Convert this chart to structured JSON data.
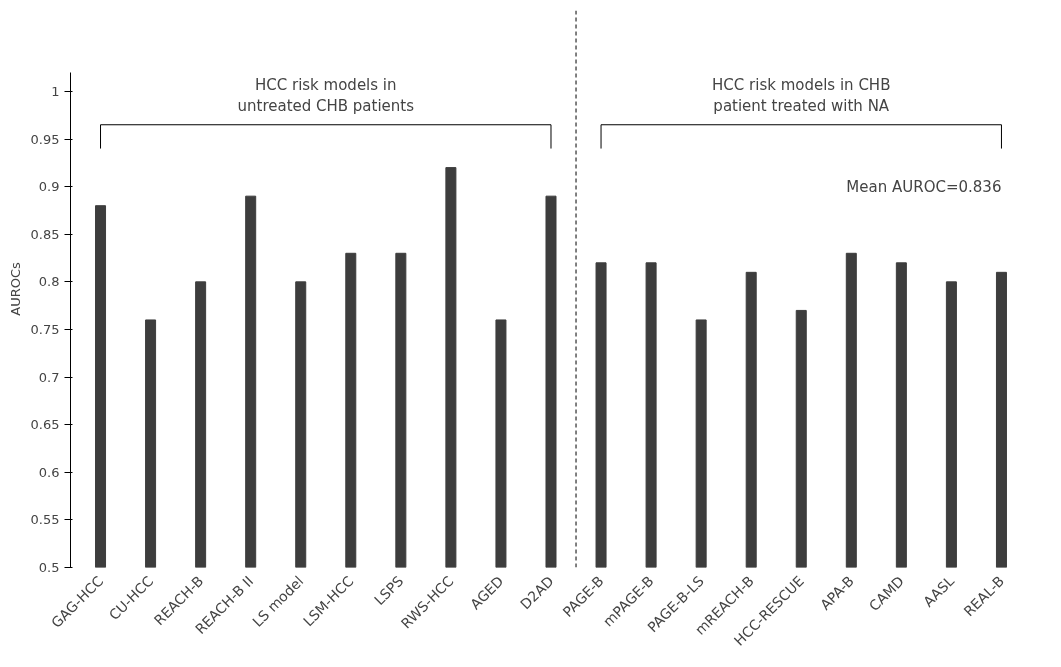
{
  "chart_data": {
    "type": "bar",
    "ylabel": "AUROCs",
    "categories": [
      "GAG-HCC",
      "CU-HCC",
      "REACH-B",
      "REACH-B II",
      "LS model",
      "LSM-HCC",
      "LSPS",
      "RWS-HCC",
      "AGED",
      "D2AD",
      "PAGE-B",
      "mPAGE-B",
      "PAGE-B-LS",
      "mREACH-B",
      "HCC-RESCUE",
      "APA-B",
      "CAMD",
      "AASL",
      "REAL-B"
    ],
    "values": [
      0.88,
      0.76,
      0.8,
      0.89,
      0.8,
      0.83,
      0.83,
      0.92,
      0.76,
      0.89,
      0.82,
      0.82,
      0.76,
      0.81,
      0.77,
      0.83,
      0.82,
      0.8,
      0.81
    ],
    "color": "#3d3d3d",
    "ylim": [
      0.5,
      1.02
    ],
    "yticks": [
      {
        "value": 0.5,
        "label": "0.5"
      },
      {
        "value": 0.55,
        "label": "0.55"
      },
      {
        "value": 0.6,
        "label": "0.6"
      },
      {
        "value": 0.65,
        "label": "0.65"
      },
      {
        "value": 0.7,
        "label": "0.7"
      },
      {
        "value": 0.75,
        "label": "0.75"
      },
      {
        "value": 0.8,
        "label": "0.8"
      },
      {
        "value": 0.85,
        "label": "0.85"
      },
      {
        "value": 0.9,
        "label": "0.9"
      },
      {
        "value": 0.95,
        "label": "0.95"
      },
      {
        "value": 1,
        "label": "1"
      }
    ],
    "annotations": [
      "HCC risk models in\nuntreated CHB patients",
      "HCC risk models in CHB\npatient treated with NA",
      "Mean AUROC=0.836"
    ],
    "grid": false
  }
}
